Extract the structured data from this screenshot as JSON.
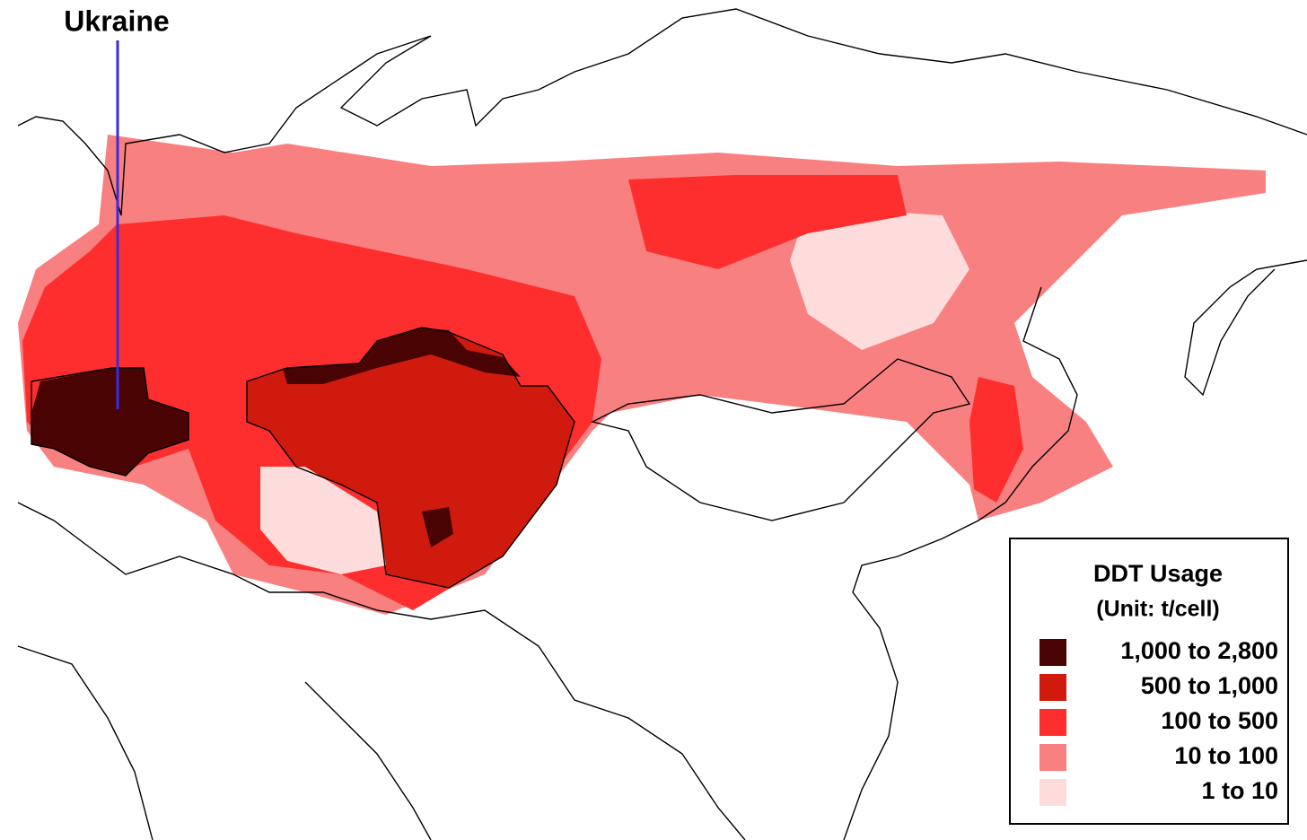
{
  "annotation": {
    "label": "Ukraine",
    "line_color": "#3b2bd9"
  },
  "legend": {
    "title": "DDT Usage",
    "subtitle": "(Unit: t/cell)",
    "items": [
      {
        "label": "1,000 to 2,800",
        "color": "#4a0303"
      },
      {
        "label": "500 to 1,000",
        "color": "#d01a0e"
      },
      {
        "label": "100 to 500",
        "color": "#ff2e2e"
      },
      {
        "label": "10 to 100",
        "color": "#f88080"
      },
      {
        "label": "1 to 10",
        "color": "#ffdcdc"
      }
    ]
  }
}
